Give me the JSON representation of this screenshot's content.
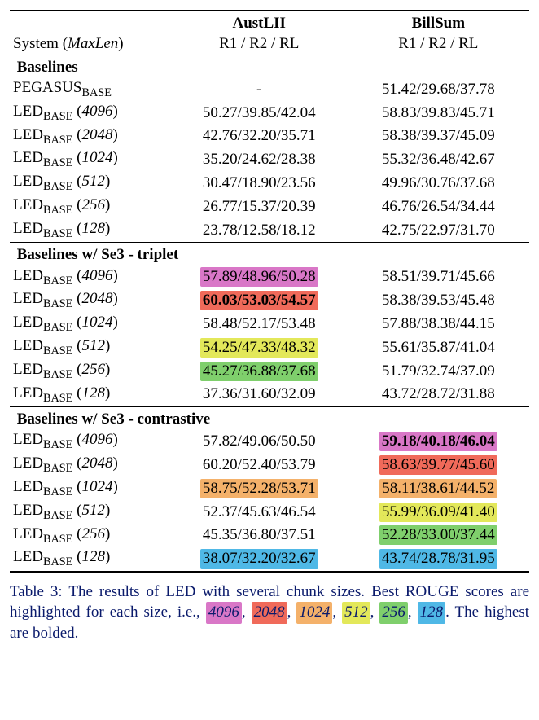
{
  "header": {
    "system_label": "System",
    "maxlen_label": "MaxLen",
    "col1": "AustLII",
    "col2": "BillSum",
    "metrics": "R1 / R2 / RL"
  },
  "highlight_colors": {
    "c4096": "#d977c7",
    "c2048": "#f06a5a",
    "c1024": "#f4b16a",
    "c512": "#e3e85a",
    "c256": "#7fcf6c",
    "c128": "#4fb8e6"
  },
  "sections": [
    {
      "title": "Baselines",
      "rows": [
        {
          "sys": "PEGASUS",
          "sub": "BASE",
          "ml": "",
          "a": {
            "t": "-"
          },
          "b": {
            "t": "51.42/29.68/37.78"
          }
        },
        {
          "sys": "LED",
          "sub": "BASE",
          "ml": "4096",
          "a": {
            "t": "50.27/39.85/42.04"
          },
          "b": {
            "t": "58.83/39.83/45.71"
          }
        },
        {
          "sys": "LED",
          "sub": "BASE",
          "ml": "2048",
          "a": {
            "t": "42.76/32.20/35.71"
          },
          "b": {
            "t": "58.38/39.37/45.09"
          }
        },
        {
          "sys": "LED",
          "sub": "BASE",
          "ml": "1024",
          "a": {
            "t": "35.20/24.62/28.38"
          },
          "b": {
            "t": "55.32/36.48/42.67"
          }
        },
        {
          "sys": "LED",
          "sub": "BASE",
          "ml": "512",
          "a": {
            "t": "30.47/18.90/23.56"
          },
          "b": {
            "t": "49.96/30.76/37.68"
          }
        },
        {
          "sys": "LED",
          "sub": "BASE",
          "ml": "256",
          "a": {
            "t": "26.77/15.37/20.39"
          },
          "b": {
            "t": "46.76/26.54/34.44"
          }
        },
        {
          "sys": "LED",
          "sub": "BASE",
          "ml": "128",
          "a": {
            "t": "23.78/12.58/18.12"
          },
          "b": {
            "t": "42.75/22.97/31.70"
          }
        }
      ]
    },
    {
      "title": "Baselines w/ Se3 - triplet",
      "rows": [
        {
          "sys": "LED",
          "sub": "BASE",
          "ml": "4096",
          "a": {
            "t": "57.89/48.96/50.28",
            "hl": "c4096"
          },
          "b": {
            "t": "58.51/39.71/45.66"
          }
        },
        {
          "sys": "LED",
          "sub": "BASE",
          "ml": "2048",
          "a": {
            "t": "60.03/53.03/54.57",
            "hl": "c2048",
            "bold": true
          },
          "b": {
            "t": "58.38/39.53/45.48"
          }
        },
        {
          "sys": "LED",
          "sub": "BASE",
          "ml": "1024",
          "a": {
            "t": "58.48/52.17/53.48"
          },
          "b": {
            "t": "57.88/38.38/44.15"
          }
        },
        {
          "sys": "LED",
          "sub": "BASE",
          "ml": "512",
          "a": {
            "t": "54.25/47.33/48.32",
            "hl": "c512"
          },
          "b": {
            "t": "55.61/35.87/41.04"
          }
        },
        {
          "sys": "LED",
          "sub": "BASE",
          "ml": "256",
          "a": {
            "t": "45.27/36.88/37.68",
            "hl": "c256"
          },
          "b": {
            "t": "51.79/32.74/37.09"
          }
        },
        {
          "sys": "LED",
          "sub": "BASE",
          "ml": "128",
          "a": {
            "t": "37.36/31.60/32.09"
          },
          "b": {
            "t": "43.72/28.72/31.88"
          }
        }
      ]
    },
    {
      "title": "Baselines w/ Se3 - contrastive",
      "rows": [
        {
          "sys": "LED",
          "sub": "BASE",
          "ml": "4096",
          "a": {
            "t": "57.82/49.06/50.50"
          },
          "b": {
            "t": "59.18/40.18/46.04",
            "hl": "c4096",
            "bold": true
          }
        },
        {
          "sys": "LED",
          "sub": "BASE",
          "ml": "2048",
          "a": {
            "t": "60.20/52.40/53.79"
          },
          "b": {
            "t": "58.63/39.77/45.60",
            "hl": "c2048"
          }
        },
        {
          "sys": "LED",
          "sub": "BASE",
          "ml": "1024",
          "a": {
            "t": "58.75/52.28/53.71",
            "hl": "c1024"
          },
          "b": {
            "t": "58.11/38.61/44.52",
            "hl": "c1024"
          }
        },
        {
          "sys": "LED",
          "sub": "BASE",
          "ml": "512",
          "a": {
            "t": "52.37/45.63/46.54"
          },
          "b": {
            "t": "55.99/36.09/41.40",
            "hl": "c512"
          }
        },
        {
          "sys": "LED",
          "sub": "BASE",
          "ml": "256",
          "a": {
            "t": "45.35/36.80/37.51"
          },
          "b": {
            "t": "52.28/33.00/37.44",
            "hl": "c256"
          }
        },
        {
          "sys": "LED",
          "sub": "BASE",
          "ml": "128",
          "a": {
            "t": "38.07/32.20/32.67",
            "hl": "c128"
          },
          "b": {
            "t": "43.74/28.78/31.95",
            "hl": "c128"
          }
        }
      ]
    }
  ],
  "caption": {
    "pre": "Table 3: The results of LED with several chunk sizes. Best ROUGE scores are highlighted for each size, i.e., ",
    "tags": [
      "4096",
      "2048",
      "1024",
      "512",
      "256",
      "128"
    ],
    "post": ". The highest are bolded."
  }
}
